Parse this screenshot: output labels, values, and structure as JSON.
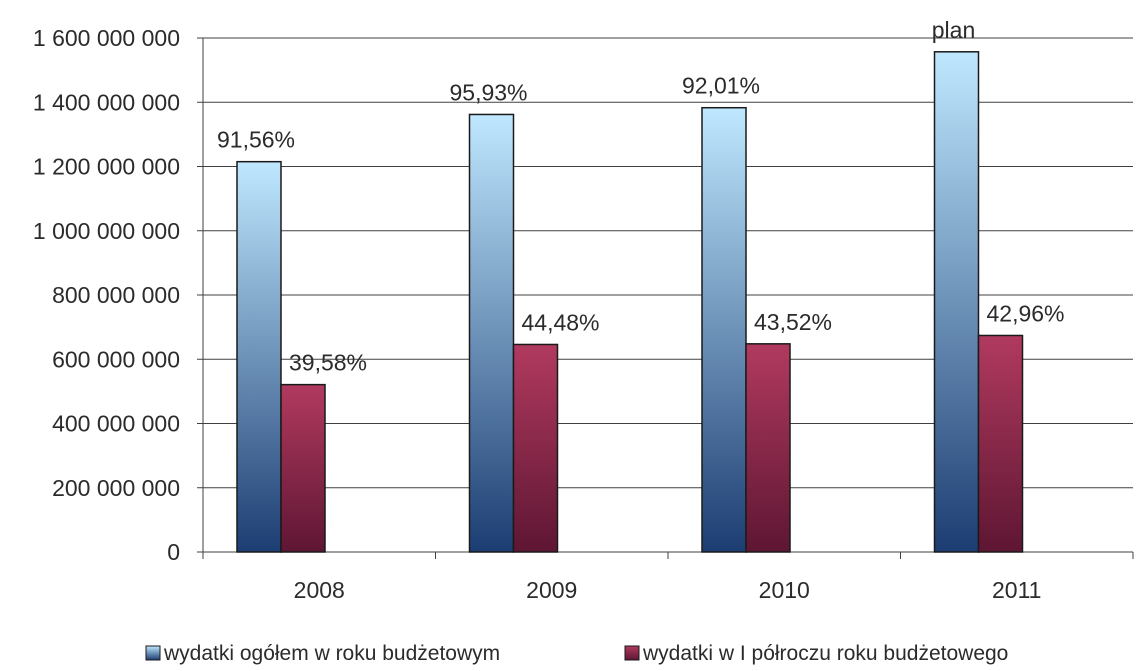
{
  "chart_data": {
    "type": "bar",
    "categories": [
      "2008",
      "2009",
      "2010",
      "2011"
    ],
    "series": [
      {
        "name": "wydatki ogółem w roku budżetowym",
        "values": [
          1215000000,
          1362000000,
          1383000000,
          1557000000
        ],
        "labels": [
          "91,56%",
          "95,93%",
          "92,01%",
          "plan"
        ],
        "color_top": "#bfe8ff",
        "color_bottom": "#1c3d72"
      },
      {
        "name": "wydatki w I półroczu roku budżetowego",
        "values": [
          521000000,
          646000000,
          648000000,
          674000000
        ],
        "labels": [
          "39,58%",
          "44,48%",
          "43,52%",
          "42,96%"
        ],
        "color_top": "#b13a5f",
        "color_bottom": "#5e1633"
      }
    ],
    "ylim": [
      0,
      1600000000
    ],
    "yticks": [
      {
        "value": 0,
        "label": "0"
      },
      {
        "value": 200000000,
        "label": "200 000 000"
      },
      {
        "value": 400000000,
        "label": "400 000 000"
      },
      {
        "value": 600000000,
        "label": "600 000 000"
      },
      {
        "value": 800000000,
        "label": "800 000 000"
      },
      {
        "value": 1000000000,
        "label": "1 000 000 000"
      },
      {
        "value": 1200000000,
        "label": "1 200 000 000"
      },
      {
        "value": 1400000000,
        "label": "1 400 000 000"
      },
      {
        "value": 1600000000,
        "label": "1 600 000 000"
      }
    ],
    "grid": true,
    "legend_position": "bottom",
    "xlabel": "",
    "ylabel": "",
    "title": ""
  }
}
